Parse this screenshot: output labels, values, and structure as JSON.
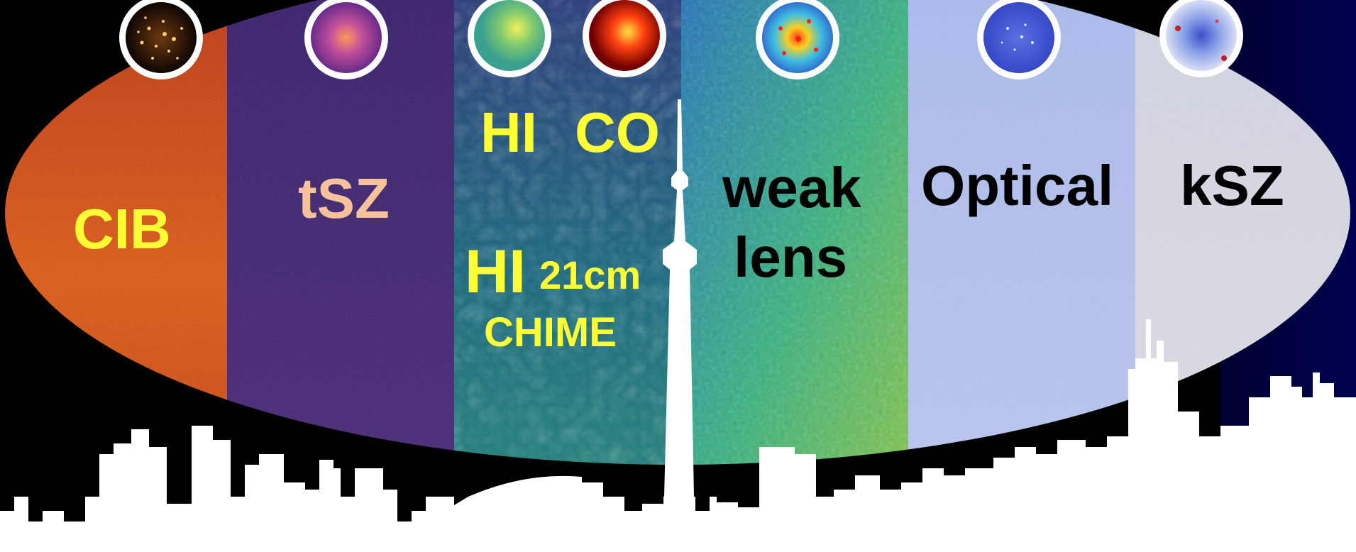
{
  "panels": [
    {
      "id": "cib",
      "label": "CIB",
      "label_color": "#ffff33",
      "base": "#c43400"
    },
    {
      "id": "tsz",
      "label": "tSZ",
      "label_color": "#f7c29a",
      "base": "#3a1a6e"
    },
    {
      "id": "hi-co",
      "labels": [
        "HI",
        "CO",
        "HI",
        "21cm",
        "CHIME"
      ],
      "label_color": "#ffff33",
      "base": "#1f6c7a"
    },
    {
      "id": "weak-lens",
      "labels": [
        "weak",
        "lens"
      ],
      "label_color": "#000000",
      "base": "#3aa38a"
    },
    {
      "id": "optical",
      "label": "Optical",
      "label_color": "#000000",
      "base": "#aebde8"
    },
    {
      "id": "ksz",
      "label": "kSZ",
      "label_color": "#000000",
      "base": "#dcdfea"
    }
  ],
  "insets": [
    {
      "name": "galaxy-cluster-inset",
      "panel": "cib"
    },
    {
      "name": "tsz-cluster-inset",
      "panel": "tsz"
    },
    {
      "name": "hi-inset",
      "panel": "hi-co"
    },
    {
      "name": "co-inset",
      "panel": "hi-co"
    },
    {
      "name": "lensing-inset",
      "panel": "weak-lens"
    },
    {
      "name": "optical-inset",
      "panel": "optical"
    },
    {
      "name": "ksz-inset",
      "panel": "ksz"
    }
  ],
  "colors": {
    "skyline": "#ffffff",
    "inset_ring": "#ffffff",
    "background": "#000000"
  }
}
